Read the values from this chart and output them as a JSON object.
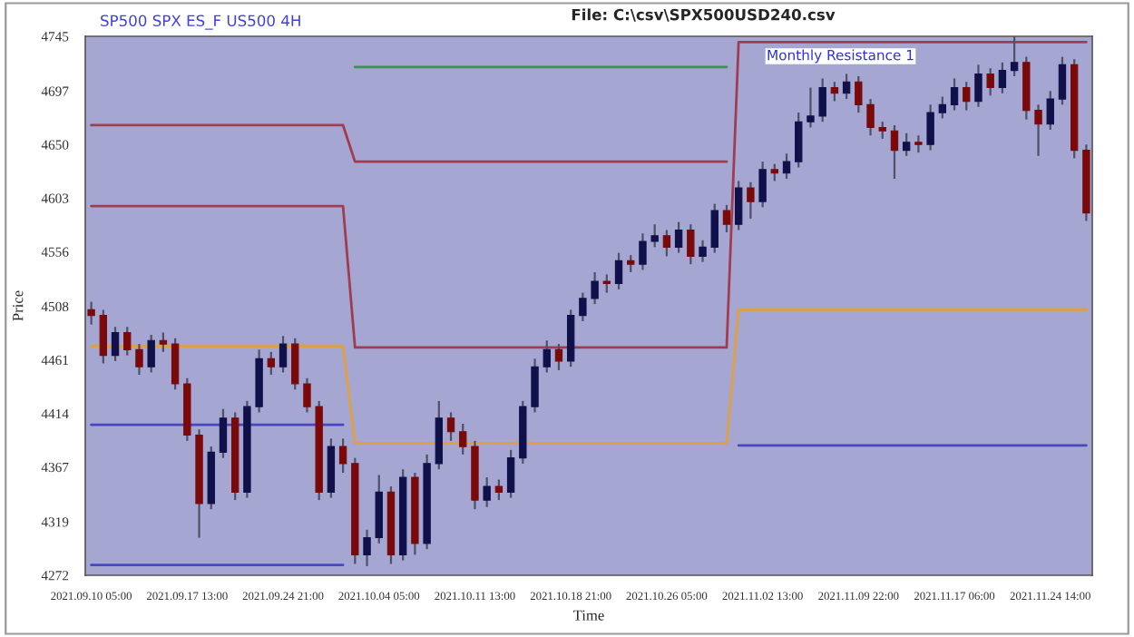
{
  "chart_data": {
    "type": "candlestick",
    "title": "File: C:\\csv\\SPX500USD240.csv",
    "subtitle": "SP500 SPX ES_F US500 4H",
    "xlabel": "Time",
    "ylabel": "Price",
    "categories": [
      "2021.09.10 05:00",
      null,
      null,
      null,
      null,
      null,
      null,
      null,
      "2021.09.17 13:00",
      null,
      null,
      null,
      null,
      null,
      null,
      null,
      "2021.09.24 21:00",
      null,
      null,
      null,
      null,
      null,
      null,
      null,
      "2021.10.04 05:00",
      null,
      null,
      null,
      null,
      null,
      null,
      null,
      "2021.10.11 13:00",
      null,
      null,
      null,
      null,
      null,
      null,
      null,
      "2021.10.18 21:00",
      null,
      null,
      null,
      null,
      null,
      null,
      null,
      "2021.10.26 05:00",
      null,
      null,
      null,
      null,
      null,
      null,
      null,
      "2021.11.02 13:00",
      null,
      null,
      null,
      null,
      null,
      null,
      null,
      "2021.11.09 22:00",
      null,
      null,
      null,
      null,
      null,
      null,
      null,
      "2021.11.17 06:00",
      null,
      null,
      null,
      null,
      null,
      null,
      null,
      "2021.11.24 14:00",
      null,
      null,
      null
    ],
    "ohlc": [
      [
        4505,
        4512,
        4492,
        4500
      ],
      [
        4500,
        4505,
        4458,
        4465
      ],
      [
        4465,
        4490,
        4460,
        4485
      ],
      [
        4485,
        4490,
        4465,
        4470
      ],
      [
        4470,
        4475,
        4448,
        4455
      ],
      [
        4455,
        4483,
        4450,
        4478
      ],
      [
        4478,
        4485,
        4468,
        4475
      ],
      [
        4475,
        4480,
        4435,
        4440
      ],
      [
        4440,
        4445,
        4390,
        4395
      ],
      [
        4395,
        4400,
        4305,
        4335
      ],
      [
        4335,
        4385,
        4330,
        4380
      ],
      [
        4380,
        4418,
        4375,
        4410
      ],
      [
        4410,
        4415,
        4338,
        4345
      ],
      [
        4345,
        4425,
        4340,
        4420
      ],
      [
        4420,
        4470,
        4415,
        4462
      ],
      [
        4462,
        4468,
        4448,
        4455
      ],
      [
        4455,
        4482,
        4450,
        4475
      ],
      [
        4475,
        4480,
        4435,
        4440
      ],
      [
        4440,
        4445,
        4415,
        4420
      ],
      [
        4420,
        4425,
        4338,
        4345
      ],
      [
        4345,
        4392,
        4340,
        4385
      ],
      [
        4385,
        4392,
        4362,
        4370
      ],
      [
        4370,
        4375,
        4282,
        4290
      ],
      [
        4290,
        4312,
        4280,
        4305
      ],
      [
        4305,
        4360,
        4300,
        4345
      ],
      [
        4345,
        4350,
        4282,
        4290
      ],
      [
        4290,
        4365,
        4285,
        4358
      ],
      [
        4358,
        4362,
        4290,
        4300
      ],
      [
        4300,
        4378,
        4295,
        4370
      ],
      [
        4370,
        4425,
        4365,
        4410
      ],
      [
        4410,
        4415,
        4390,
        4398
      ],
      [
        4398,
        4405,
        4378,
        4385
      ],
      [
        4385,
        4390,
        4330,
        4338
      ],
      [
        4338,
        4358,
        4332,
        4350
      ],
      [
        4350,
        4356,
        4338,
        4345
      ],
      [
        4345,
        4382,
        4340,
        4375
      ],
      [
        4375,
        4425,
        4370,
        4420
      ],
      [
        4420,
        4462,
        4415,
        4455
      ],
      [
        4455,
        4478,
        4450,
        4470
      ],
      [
        4470,
        4475,
        4452,
        4460
      ],
      [
        4460,
        4505,
        4455,
        4500
      ],
      [
        4500,
        4520,
        4495,
        4515
      ],
      [
        4515,
        4538,
        4510,
        4530
      ],
      [
        4530,
        4536,
        4520,
        4528
      ],
      [
        4528,
        4555,
        4523,
        4548
      ],
      [
        4548,
        4553,
        4538,
        4545
      ],
      [
        4545,
        4572,
        4540,
        4565
      ],
      [
        4565,
        4580,
        4560,
        4570
      ],
      [
        4570,
        4575,
        4552,
        4560
      ],
      [
        4560,
        4582,
        4555,
        4575
      ],
      [
        4575,
        4580,
        4545,
        4552
      ],
      [
        4552,
        4566,
        4547,
        4560
      ],
      [
        4560,
        4598,
        4555,
        4592
      ],
      [
        4592,
        4597,
        4573,
        4580
      ],
      [
        4580,
        4618,
        4575,
        4612
      ],
      [
        4612,
        4617,
        4585,
        4600
      ],
      [
        4600,
        4635,
        4595,
        4628
      ],
      [
        4628,
        4633,
        4618,
        4625
      ],
      [
        4625,
        4642,
        4620,
        4635
      ],
      [
        4635,
        4678,
        4630,
        4670
      ],
      [
        4670,
        4700,
        4665,
        4675
      ],
      [
        4675,
        4708,
        4670,
        4700
      ],
      [
        4700,
        4705,
        4688,
        4695
      ],
      [
        4695,
        4712,
        4690,
        4705
      ],
      [
        4705,
        4710,
        4678,
        4685
      ],
      [
        4685,
        4690,
        4658,
        4665
      ],
      [
        4665,
        4670,
        4655,
        4662
      ],
      [
        4662,
        4667,
        4620,
        4645
      ],
      [
        4645,
        4660,
        4640,
        4652
      ],
      [
        4652,
        4658,
        4643,
        4650
      ],
      [
        4650,
        4685,
        4645,
        4678
      ],
      [
        4678,
        4692,
        4673,
        4685
      ],
      [
        4685,
        4708,
        4680,
        4700
      ],
      [
        4700,
        4705,
        4680,
        4688
      ],
      [
        4688,
        4720,
        4683,
        4712
      ],
      [
        4712,
        4717,
        4693,
        4700
      ],
      [
        4700,
        4722,
        4695,
        4715
      ],
      [
        4715,
        4745,
        4710,
        4722
      ],
      [
        4722,
        4727,
        4672,
        4680
      ],
      [
        4680,
        4685,
        4640,
        4668
      ],
      [
        4668,
        4697,
        4663,
        4690
      ],
      [
        4690,
        4727,
        4685,
        4720
      ],
      [
        4720,
        4725,
        4638,
        4645
      ],
      [
        4645,
        4650,
        4583,
        4590
      ]
    ],
    "colors": [
      "#7a0a0a",
      "#7a0a0a",
      "#10104a",
      "#7a0a0a",
      "#7a0a0a",
      "#10104a",
      "#7a0a0a",
      "#7a0a0a",
      "#7a0a0a",
      "#7a0a0a",
      "#10104a",
      "#10104a",
      "#7a0a0a",
      "#10104a",
      "#10104a",
      "#7a0a0a",
      "#10104a",
      "#7a0a0a",
      "#7a0a0a",
      "#7a0a0a",
      "#10104a",
      "#7a0a0a",
      "#7a0a0a",
      "#10104a",
      "#10104a",
      "#7a0a0a",
      "#10104a",
      "#7a0a0a",
      "#10104a",
      "#10104a",
      "#7a0a0a",
      "#7a0a0a",
      "#7a0a0a",
      "#10104a",
      "#7a0a0a",
      "#10104a",
      "#10104a",
      "#10104a",
      "#10104a",
      "#7a0a0a",
      "#10104a",
      "#10104a",
      "#10104a",
      "#7a0a0a",
      "#10104a",
      "#7a0a0a",
      "#10104a",
      "#10104a",
      "#7a0a0a",
      "#10104a",
      "#7a0a0a",
      "#10104a",
      "#10104a",
      "#7a0a0a",
      "#10104a",
      "#7a0a0a",
      "#10104a",
      "#7a0a0a",
      "#10104a",
      "#10104a",
      "#10104a",
      "#10104a",
      "#7a0a0a",
      "#10104a",
      "#7a0a0a",
      "#7a0a0a",
      "#7a0a0a",
      "#7a0a0a",
      "#10104a",
      "#7a0a0a",
      "#10104a",
      "#10104a",
      "#10104a",
      "#7a0a0a",
      "#10104a",
      "#7a0a0a",
      "#10104a",
      "#10104a",
      "#7a0a0a",
      "#7a0a0a",
      "#10104a",
      "#10104a",
      "#7a0a0a",
      "#7a0a0a"
    ],
    "series": [
      {
        "type": "line",
        "color": "#3c9050",
        "values": [
          null,
          null,
          null,
          null,
          null,
          null,
          null,
          null,
          null,
          null,
          null,
          null,
          null,
          null,
          null,
          null,
          null,
          null,
          null,
          null,
          null,
          null,
          4718,
          4718,
          4718,
          4718,
          4718,
          4718,
          4718,
          4718,
          4718,
          4718,
          4718,
          4718,
          4718,
          4718,
          4718,
          4718,
          4718,
          4718,
          4718,
          4718,
          4718,
          4718,
          4718,
          4718,
          4718,
          4718,
          4718,
          4718,
          4718,
          4718,
          4718,
          4718,
          null,
          null,
          null,
          null,
          null,
          null,
          null,
          null,
          null,
          null,
          null,
          null,
          null,
          null,
          null,
          null,
          null,
          null,
          null,
          null,
          null,
          null,
          null,
          null,
          null,
          null,
          null,
          null,
          null,
          null
        ]
      },
      {
        "type": "line",
        "color": "#a03c50",
        "values": [
          4667,
          4667,
          4667,
          4667,
          4667,
          4667,
          4667,
          4667,
          4667,
          4667,
          4667,
          4667,
          4667,
          4667,
          4667,
          4667,
          4667,
          4667,
          4667,
          4667,
          4667,
          4667,
          4635,
          4635,
          4635,
          4635,
          4635,
          4635,
          4635,
          4635,
          4635,
          4635,
          4635,
          4635,
          4635,
          4635,
          4635,
          4635,
          4635,
          4635,
          4635,
          4635,
          4635,
          4635,
          4635,
          4635,
          4635,
          4635,
          4635,
          4635,
          4635,
          4635,
          4635,
          4635,
          null,
          null,
          null,
          null,
          null,
          null,
          null,
          null,
          null,
          null,
          null,
          null,
          null,
          null,
          null,
          null,
          null,
          null,
          null,
          null,
          null,
          null,
          null,
          null,
          null,
          null,
          null,
          null,
          null,
          null
        ]
      },
      {
        "type": "line",
        "color": "#a03c50",
        "values": [
          4596,
          4596,
          4596,
          4596,
          4596,
          4596,
          4596,
          4596,
          4596,
          4596,
          4596,
          4596,
          4596,
          4596,
          4596,
          4596,
          4596,
          4596,
          4596,
          4596,
          4596,
          4596,
          4472,
          4472,
          4472,
          4472,
          4472,
          4472,
          4472,
          4472,
          4472,
          4472,
          4472,
          4472,
          4472,
          4472,
          4472,
          4472,
          4472,
          4472,
          4472,
          4472,
          4472,
          4472,
          4472,
          4472,
          4472,
          4472,
          4472,
          4472,
          4472,
          4472,
          4472,
          4472,
          4740,
          4740,
          4740,
          4740,
          4740,
          4740,
          4740,
          4740,
          4740,
          4740,
          4740,
          4740,
          4740,
          4740,
          4740,
          4740,
          4740,
          4740,
          4740,
          4740,
          4740,
          4740,
          4740,
          4740,
          4740,
          4740,
          4740,
          4740,
          4740,
          4740
        ]
      },
      {
        "type": "line",
        "color": "#e0a040",
        "values": [
          4473,
          4473,
          4473,
          4473,
          4473,
          4473,
          4473,
          4473,
          4473,
          4473,
          4473,
          4473,
          4473,
          4473,
          4473,
          4473,
          4473,
          4473,
          4473,
          4473,
          4473,
          4473,
          4388,
          4388,
          4388,
          4388,
          4388,
          4388,
          4388,
          4388,
          4388,
          4388,
          4388,
          4388,
          4388,
          4388,
          4388,
          4388,
          4388,
          4388,
          4388,
          4388,
          4388,
          4388,
          4388,
          4388,
          4388,
          4388,
          4388,
          4388,
          4388,
          4388,
          4388,
          4388,
          4505,
          4505,
          4505,
          4505,
          4505,
          4505,
          4505,
          4505,
          4505,
          4505,
          4505,
          4505,
          4505,
          4505,
          4505,
          4505,
          4505,
          4505,
          4505,
          4505,
          4505,
          4505,
          4505,
          4505,
          4505,
          4505,
          4505,
          4505,
          4505,
          4505
        ]
      },
      {
        "type": "line",
        "color": "#4848c0",
        "values": [
          4404,
          4404,
          4404,
          4404,
          4404,
          4404,
          4404,
          4404,
          4404,
          4404,
          4404,
          4404,
          4404,
          4404,
          4404,
          4404,
          4404,
          4404,
          4404,
          4404,
          4404,
          4404,
          null,
          null,
          null,
          null,
          null,
          null,
          null,
          null,
          null,
          null,
          null,
          null,
          null,
          null,
          null,
          null,
          null,
          null,
          null,
          null,
          null,
          null,
          null,
          null,
          null,
          null,
          null,
          null,
          null,
          null,
          null,
          null,
          4386,
          4386,
          4386,
          4386,
          4386,
          4386,
          4386,
          4386,
          4386,
          4386,
          4386,
          4386,
          4386,
          4386,
          4386,
          4386,
          4386,
          4386,
          4386,
          4386,
          4386,
          4386,
          4386,
          4386,
          4386,
          4386,
          4386,
          4386,
          4386,
          4386
        ]
      },
      {
        "type": "line",
        "color": "#4848c0",
        "values": [
          4281,
          4281,
          4281,
          4281,
          4281,
          4281,
          4281,
          4281,
          4281,
          4281,
          4281,
          4281,
          4281,
          4281,
          4281,
          4281,
          4281,
          4281,
          4281,
          4281,
          4281,
          4281,
          null,
          null,
          null,
          null,
          null,
          null,
          null,
          null,
          null,
          null,
          null,
          null,
          null,
          null,
          null,
          null,
          null,
          null,
          null,
          null,
          null,
          null,
          null,
          null,
          null,
          null,
          null,
          null,
          null,
          null,
          null,
          null,
          null,
          null,
          null,
          null,
          null,
          null,
          null,
          null,
          null,
          null,
          null,
          null,
          null,
          null,
          null,
          null,
          null,
          null,
          null,
          null,
          null,
          null,
          null,
          null,
          null,
          null,
          null,
          null,
          null,
          null
        ]
      }
    ],
    "ylim": [
      4272,
      4745
    ],
    "yticks": [
      4272,
      4319,
      4367,
      4414,
      4461,
      4508,
      4556,
      4603,
      4650,
      4697,
      4745
    ],
    "annotations": [
      {
        "text": "Monthly Resistance 1",
        "y": 4740
      }
    ]
  }
}
